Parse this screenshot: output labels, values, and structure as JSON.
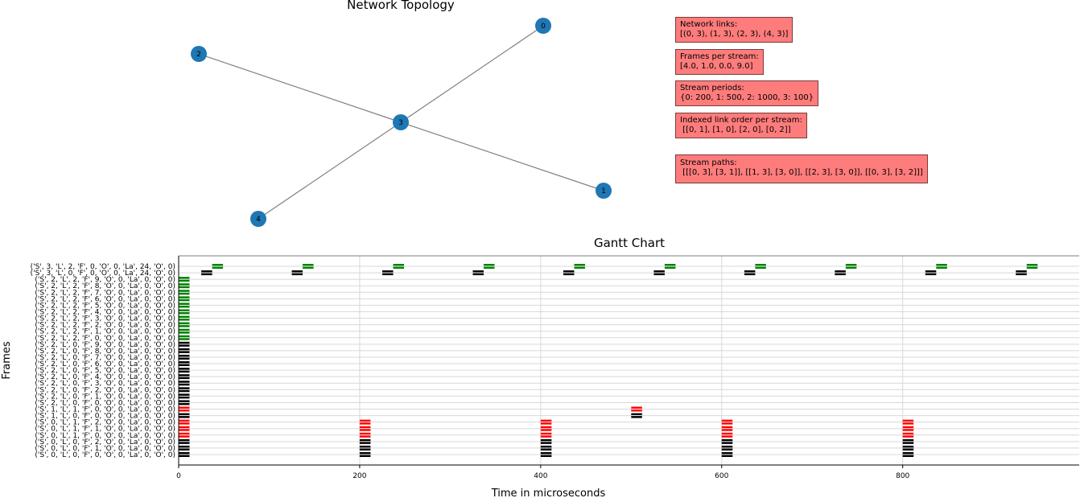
{
  "topology": {
    "title": "Network  Topology",
    "nodes": [
      {
        "id": "0"
      },
      {
        "id": "1"
      },
      {
        "id": "2"
      },
      {
        "id": "3"
      },
      {
        "id": "4"
      }
    ],
    "edges": [
      [
        "0",
        "3"
      ],
      [
        "1",
        "3"
      ],
      [
        "2",
        "3"
      ],
      [
        "4",
        "3"
      ]
    ],
    "colors": {
      "node": "#1f77b4",
      "edge": "#808080"
    }
  },
  "info_boxes": [
    {
      "label": "Network links:",
      "value": "[(0, 3), (1, 3), (2, 3), (4, 3)]"
    },
    {
      "label": "Frames per stream:",
      "value": "[4.0, 1.0, 0.0, 9.0]"
    },
    {
      "label": "Stream periods:",
      "value": "{0: 200, 1: 500, 2: 1000, 3: 100}"
    },
    {
      "label": "Indexed link order per stream:",
      "value": " [[0, 1], [1, 0], [2, 0], [0, 2]]"
    },
    {
      "label": "Stream paths:",
      "value": " [[[0, 3], [3, 1]], [[1, 3], [3, 0]], [[2, 3], [3, 0]], [[0, 3], [3, 2]]]"
    }
  ],
  "chart_data": {
    "type": "gantt",
    "title": "Gantt Chart",
    "xlabel": "Time in microseconds",
    "ylabel": "Frames",
    "xlim": [
      0,
      995
    ],
    "xticks": [
      0,
      200,
      400,
      600,
      800
    ],
    "grid": true,
    "colors": {
      "green": "#008000",
      "black": "#000000",
      "red": "#ff0000"
    },
    "rows": [
      {
        "label": "('S', 3, 'L', 2, 'F', 0, 'O', 0, 'La', 24, 'O', 0)",
        "color": "green",
        "starts": [
          37,
          137,
          237,
          337,
          437,
          537,
          637,
          737,
          837,
          937
        ],
        "duration": 12
      },
      {
        "label": "('S', 3, 'L', 0, 'F', 0, 'O', 0, 'La', 24, 'O', 0)",
        "color": "black",
        "starts": [
          25,
          125,
          225,
          325,
          425,
          525,
          625,
          725,
          825,
          925
        ],
        "duration": 12
      },
      {
        "label": "('S', 2, 'L', 2, 'F', 9, 'O', 0, 'La', 0, 'O', 0)",
        "color": "green",
        "starts": [
          0
        ],
        "duration": 12
      },
      {
        "label": "('S', 2, 'L', 2, 'F', 8, 'O', 0, 'La', 0, 'O', 0)",
        "color": "green",
        "starts": [
          0
        ],
        "duration": 12
      },
      {
        "label": "('S', 2, 'L', 2, 'F', 7, 'O', 0, 'La', 0, 'O', 0)",
        "color": "green",
        "starts": [
          0
        ],
        "duration": 12
      },
      {
        "label": "('S', 2, 'L', 2, 'F', 6, 'O', 0, 'La', 0, 'O', 0)",
        "color": "green",
        "starts": [
          0
        ],
        "duration": 12
      },
      {
        "label": "('S', 2, 'L', 2, 'F', 5, 'O', 0, 'La', 0, 'O', 0)",
        "color": "green",
        "starts": [
          0
        ],
        "duration": 12
      },
      {
        "label": "('S', 2, 'L', 2, 'F', 4, 'O', 0, 'La', 0, 'O', 0)",
        "color": "green",
        "starts": [
          0
        ],
        "duration": 12
      },
      {
        "label": "('S', 2, 'L', 2, 'F', 3, 'O', 0, 'La', 0, 'O', 0)",
        "color": "green",
        "starts": [
          0
        ],
        "duration": 12
      },
      {
        "label": "('S', 2, 'L', 2, 'F', 2, 'O', 0, 'La', 0, 'O', 0)",
        "color": "green",
        "starts": [
          0
        ],
        "duration": 12
      },
      {
        "label": "('S', 2, 'L', 2, 'F', 1, 'O', 0, 'La', 0, 'O', 0)",
        "color": "green",
        "starts": [
          0
        ],
        "duration": 12
      },
      {
        "label": "('S', 2, 'L', 2, 'F', 0, 'O', 0, 'La', 0, 'O', 0)",
        "color": "green",
        "starts": [
          0
        ],
        "duration": 12
      },
      {
        "label": "('S', 2, 'L', 0, 'F', 9, 'O', 0, 'La', 0, 'O', 0)",
        "color": "black",
        "starts": [
          0
        ],
        "duration": 12
      },
      {
        "label": "('S', 2, 'L', 0, 'F', 8, 'O', 0, 'La', 0, 'O', 0)",
        "color": "black",
        "starts": [
          0
        ],
        "duration": 12
      },
      {
        "label": "('S', 2, 'L', 0, 'F', 7, 'O', 0, 'La', 0, 'O', 0)",
        "color": "black",
        "starts": [
          0
        ],
        "duration": 12
      },
      {
        "label": "('S', 2, 'L', 0, 'F', 6, 'O', 0, 'La', 0, 'O', 0)",
        "color": "black",
        "starts": [
          0
        ],
        "duration": 12
      },
      {
        "label": "('S', 2, 'L', 0, 'F', 5, 'O', 0, 'La', 0, 'O', 0)",
        "color": "black",
        "starts": [
          0
        ],
        "duration": 12
      },
      {
        "label": "('S', 2, 'L', 0, 'F', 4, 'O', 0, 'La', 0, 'O', 0)",
        "color": "black",
        "starts": [
          0
        ],
        "duration": 12
      },
      {
        "label": "('S', 2, 'L', 0, 'F', 3, 'O', 0, 'La', 0, 'O', 0)",
        "color": "black",
        "starts": [
          0
        ],
        "duration": 12
      },
      {
        "label": "('S', 2, 'L', 0, 'F', 2, 'O', 0, 'La', 0, 'O', 0)",
        "color": "black",
        "starts": [
          0
        ],
        "duration": 12
      },
      {
        "label": "('S', 2, 'L', 0, 'F', 1, 'O', 0, 'La', 0, 'O', 0)",
        "color": "black",
        "starts": [
          0
        ],
        "duration": 12
      },
      {
        "label": "('S', 2, 'L', 0, 'F', 0, 'O', 0, 'La', 0, 'O', 0)",
        "color": "black",
        "starts": [
          0
        ],
        "duration": 12
      },
      {
        "label": "('S', 1, 'L', 1, 'F', 0, 'O', 0, 'La', 0, 'O', 0)",
        "color": "red",
        "starts": [
          0,
          500
        ],
        "duration": 12
      },
      {
        "label": "('S', 1, 'L', 0, 'F', 0, 'O', 0, 'La', 0, 'O', 0)",
        "color": "black",
        "starts": [
          0,
          500
        ],
        "duration": 12
      },
      {
        "label": "('S', 0, 'L', 1, 'F', 2, 'O', 0, 'La', 0, 'O', 0)",
        "color": "red",
        "starts": [
          0,
          200,
          400,
          600,
          800
        ],
        "duration": 12
      },
      {
        "label": "('S', 0, 'L', 1, 'F', 1, 'O', 0, 'La', 0, 'O', 0)",
        "color": "red",
        "starts": [
          0,
          200,
          400,
          600,
          800
        ],
        "duration": 12
      },
      {
        "label": "('S', 0, 'L', 1, 'F', 0, 'O', 0, 'La', 0, 'O', 0)",
        "color": "red",
        "starts": [
          0,
          200,
          400,
          600,
          800
        ],
        "duration": 12
      },
      {
        "label": "('S', 0, 'L', 0, 'F', 2, 'O', 0, 'La', 0, 'O', 0)",
        "color": "black",
        "starts": [
          0,
          200,
          400,
          600,
          800
        ],
        "duration": 12
      },
      {
        "label": "('S', 0, 'L', 0, 'F', 1, 'O', 0, 'La', 0, 'O', 0)",
        "color": "black",
        "starts": [
          0,
          200,
          400,
          600,
          800
        ],
        "duration": 12
      },
      {
        "label": "('S', 0, 'L', 0, 'F', 0, 'O', 0, 'La', 0, 'O', 0)",
        "color": "black",
        "starts": [
          0,
          200,
          400,
          600,
          800
        ],
        "duration": 12
      }
    ]
  }
}
